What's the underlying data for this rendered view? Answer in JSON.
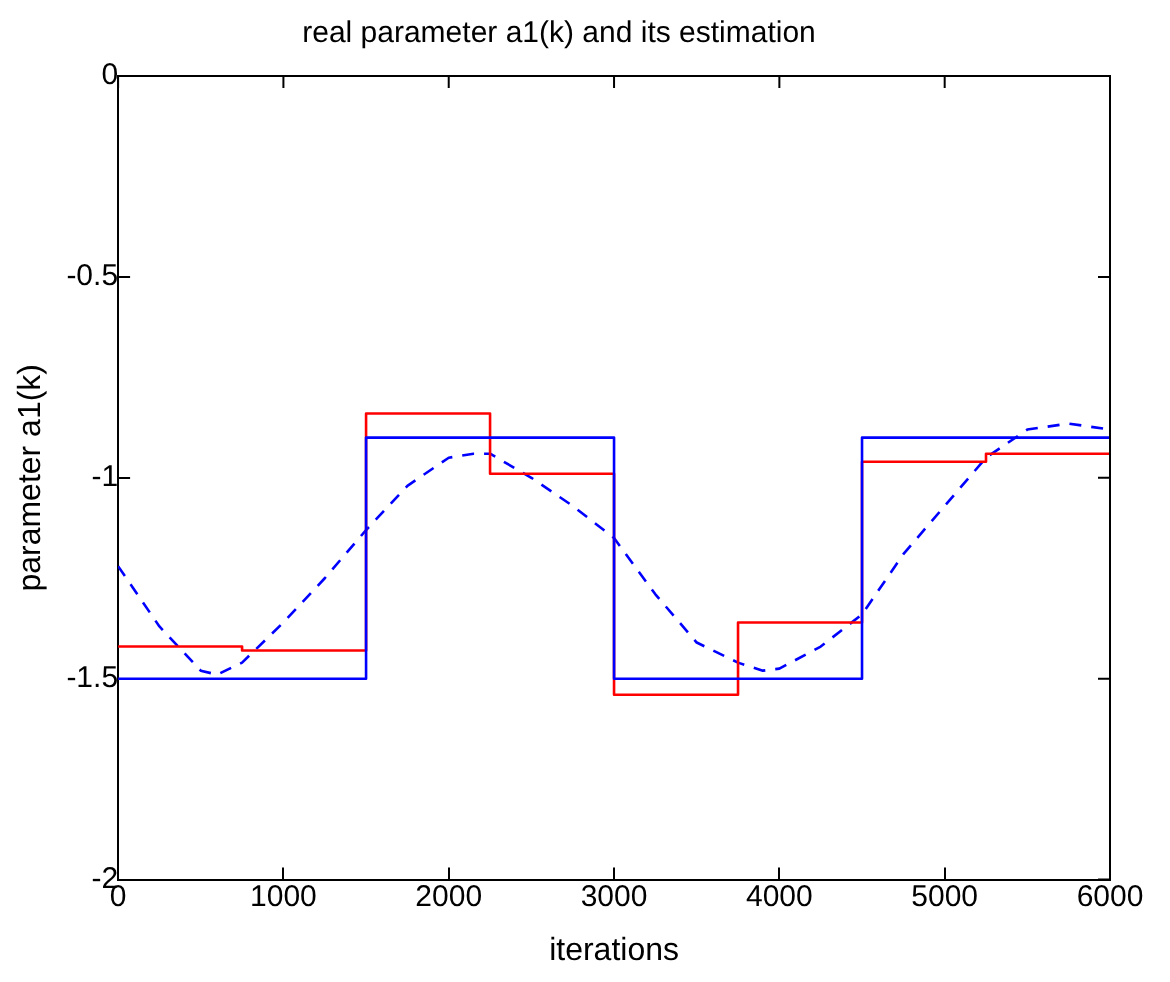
{
  "chart_data": {
    "type": "line",
    "title": "real parameter a1(k) and its estimation",
    "xlabel": "iterations",
    "ylabel": "parameter a1(k)",
    "xlim": [
      0,
      6000
    ],
    "xticks": [
      0,
      1000,
      2000,
      3000,
      4000,
      5000,
      6000
    ],
    "ylim": [
      -2,
      0
    ],
    "yticks": [
      -2,
      -1.5,
      -1,
      -0.5,
      0
    ],
    "grid": false,
    "legend": false,
    "marker": "none",
    "series": [
      {
        "type": "step",
        "color": "#0000ff",
        "line_style": "solid",
        "x": [
          0,
          1500,
          3000,
          4500,
          6000
        ],
        "values": [
          -1.5,
          -0.9,
          -1.5,
          -0.9,
          -0.9
        ]
      },
      {
        "type": "step",
        "color": "#ff0000",
        "line_style": "solid",
        "x": [
          0,
          750,
          1500,
          2250,
          3000,
          3750,
          4500,
          5250,
          6000
        ],
        "values": [
          -1.42,
          -1.43,
          -0.84,
          -0.99,
          -1.54,
          -1.36,
          -0.96,
          -0.94,
          -0.94
        ]
      },
      {
        "color": "#0000ff",
        "line_style": "dashed",
        "x": [
          0,
          250,
          500,
          600,
          750,
          1000,
          1250,
          1500,
          1750,
          2000,
          2150,
          2250,
          2500,
          2750,
          3000,
          3250,
          3500,
          3750,
          3900,
          4000,
          4250,
          4500,
          4750,
          5000,
          5250,
          5500,
          5750,
          6000
        ],
        "values": [
          -1.22,
          -1.37,
          -1.48,
          -1.49,
          -1.46,
          -1.36,
          -1.25,
          -1.13,
          -1.02,
          -0.95,
          -0.94,
          -0.94,
          -1.0,
          -1.07,
          -1.15,
          -1.29,
          -1.41,
          -1.46,
          -1.48,
          -1.475,
          -1.42,
          -1.34,
          -1.19,
          -1.07,
          -0.95,
          -0.88,
          -0.865,
          -0.88
        ]
      }
    ]
  }
}
